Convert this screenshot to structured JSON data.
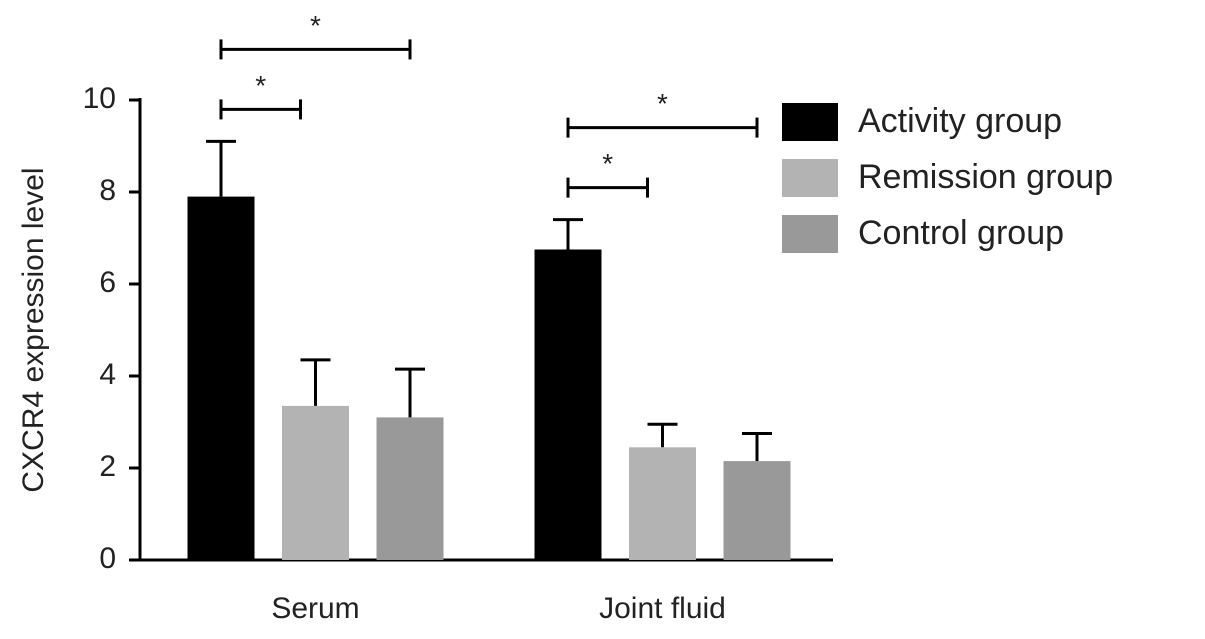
{
  "chart_data": {
    "type": "bar",
    "ylabel": "CXCR4 expression level",
    "categories": [
      "Serum",
      "Joint fluid"
    ],
    "series": [
      {
        "name": "Activity group",
        "color": "#000000",
        "values": [
          7.9,
          6.75
        ],
        "errors": [
          1.2,
          0.65
        ]
      },
      {
        "name": "Remission group",
        "color": "#b3b3b3",
        "values": [
          3.35,
          2.45
        ],
        "errors": [
          1.0,
          0.5
        ]
      },
      {
        "name": "Control group",
        "color": "#999999",
        "values": [
          3.1,
          2.15
        ],
        "errors": [
          1.05,
          0.6
        ]
      }
    ],
    "comparisons": [
      {
        "group": 0,
        "a": 0,
        "b": 1,
        "label": "*"
      },
      {
        "group": 0,
        "a": 0,
        "b": 2,
        "label": "*"
      },
      {
        "group": 1,
        "a": 0,
        "b": 1,
        "label": "*"
      },
      {
        "group": 1,
        "a": 0,
        "b": 2,
        "label": "*"
      }
    ],
    "ylim": [
      0,
      10
    ],
    "yticks": [
      0,
      2,
      4,
      6,
      8,
      10
    ]
  }
}
